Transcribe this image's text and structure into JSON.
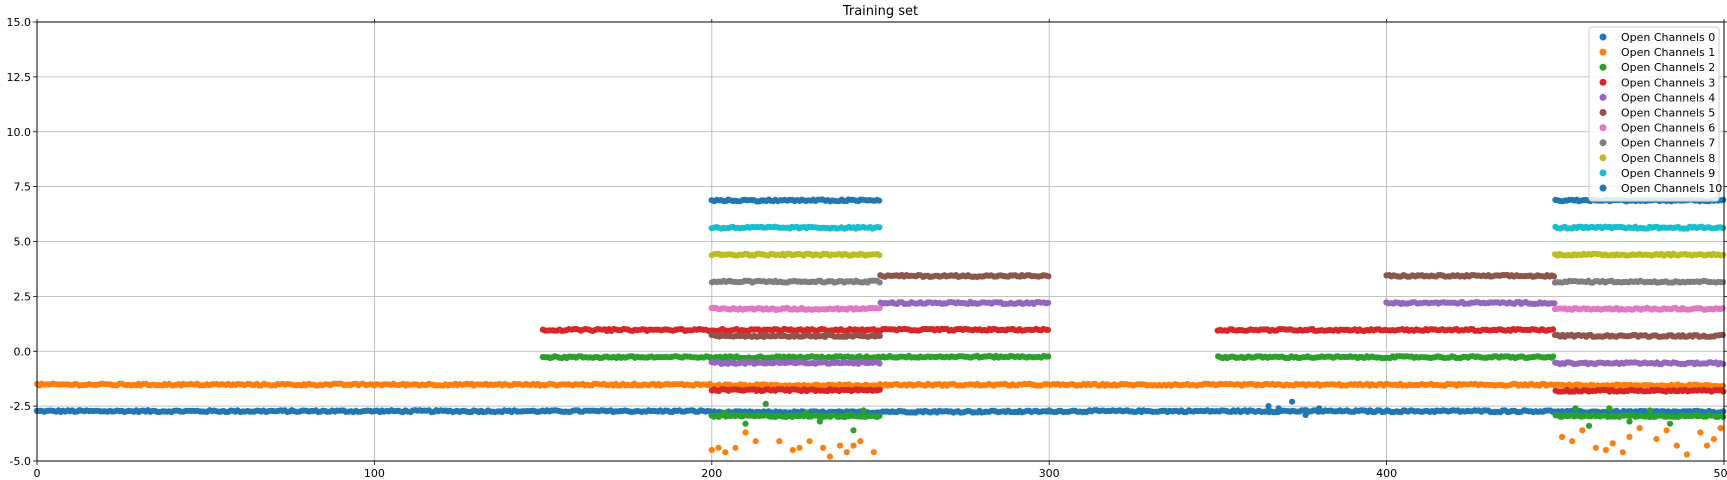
{
  "chart_data": {
    "type": "scatter",
    "title": "Training set",
    "xlabel": "",
    "ylabel": "",
    "xlim": [
      0,
      500
    ],
    "ylim": [
      -5.0,
      15.0
    ],
    "xticks": [
      0,
      100,
      200,
      300,
      400,
      500
    ],
    "yticks": [
      "-5.0",
      "-2.5",
      "0.0",
      "2.5",
      "5.0",
      "7.5",
      "10.0",
      "12.5",
      "15.0"
    ],
    "grid": true,
    "legend": "top-right",
    "series": [
      {
        "name": "Open Channels 0",
        "color": "#1f77b4",
        "segments": [
          [
            0,
            200,
            -2.73
          ],
          [
            200,
            250,
            -2.78
          ],
          [
            250,
            300,
            -2.75
          ],
          [
            300,
            450,
            -2.73
          ],
          [
            450,
            500,
            -2.76
          ]
        ]
      },
      {
        "name": "Open Channels 1",
        "color": "#ff7f0e",
        "segments": [
          [
            0,
            200,
            -1.52
          ],
          [
            200,
            250,
            -1.55
          ],
          [
            250,
            450,
            -1.53
          ],
          [
            450,
            500,
            -1.56
          ]
        ]
      },
      {
        "name": "Open Channels 2",
        "color": "#2ca02c",
        "segments": [
          [
            150,
            250,
            -0.27
          ],
          [
            250,
            300,
            -0.25
          ],
          [
            350,
            450,
            -0.27
          ],
          [
            200,
            250,
            -2.95
          ],
          [
            450,
            500,
            -2.95
          ]
        ]
      },
      {
        "name": "Open Channels 3",
        "color": "#d62728",
        "segments": [
          [
            150,
            250,
            0.97
          ],
          [
            250,
            300,
            0.98
          ],
          [
            350,
            450,
            0.97
          ],
          [
            200,
            250,
            -1.77
          ],
          [
            450,
            500,
            -1.8
          ]
        ]
      },
      {
        "name": "Open Channels 4",
        "color": "#9467bd",
        "segments": [
          [
            200,
            250,
            -0.53
          ],
          [
            250,
            300,
            2.2
          ],
          [
            400,
            450,
            2.2
          ],
          [
            450,
            500,
            -0.55
          ]
        ]
      },
      {
        "name": "Open Channels 5",
        "color": "#8c564b",
        "segments": [
          [
            200,
            250,
            0.7
          ],
          [
            250,
            300,
            3.43
          ],
          [
            400,
            450,
            3.43
          ],
          [
            450,
            500,
            0.7
          ]
        ]
      },
      {
        "name": "Open Channels 6",
        "color": "#e377c2",
        "segments": [
          [
            200,
            250,
            1.93
          ],
          [
            450,
            500,
            1.93
          ]
        ]
      },
      {
        "name": "Open Channels 7",
        "color": "#7f7f7f",
        "segments": [
          [
            200,
            250,
            3.17
          ],
          [
            450,
            500,
            3.17
          ]
        ]
      },
      {
        "name": "Open Channels 8",
        "color": "#bcbd22",
        "segments": [
          [
            200,
            250,
            4.4
          ],
          [
            450,
            500,
            4.4
          ]
        ]
      },
      {
        "name": "Open Channels 9",
        "color": "#17becf",
        "segments": [
          [
            200,
            250,
            5.63
          ],
          [
            450,
            500,
            5.63
          ]
        ]
      },
      {
        "name": "Open Channels 10",
        "color": "#1f77b4",
        "segments": [
          [
            200,
            250,
            6.87
          ],
          [
            450,
            500,
            6.87
          ]
        ]
      }
    ],
    "outliers": [
      {
        "series": 1,
        "points": [
          [
            200,
            -4.5
          ],
          [
            202,
            -4.4
          ],
          [
            204,
            -4.6
          ],
          [
            207,
            -4.4
          ],
          [
            210,
            -3.7
          ],
          [
            213,
            -4.1
          ],
          [
            220,
            -4.1
          ],
          [
            224,
            -4.5
          ],
          [
            226,
            -4.4
          ],
          [
            229,
            -4.1
          ],
          [
            233,
            -4.4
          ],
          [
            235,
            -4.8
          ],
          [
            238,
            -4.3
          ],
          [
            240,
            -4.6
          ],
          [
            242,
            -4.3
          ],
          [
            244,
            -4.1
          ],
          [
            248,
            -4.6
          ],
          [
            452,
            -3.9
          ],
          [
            455,
            -4.1
          ],
          [
            458,
            -3.6
          ],
          [
            462,
            -4.4
          ],
          [
            465,
            -4.5
          ],
          [
            467,
            -4.2
          ],
          [
            470,
            -4.6
          ],
          [
            472,
            -3.9
          ],
          [
            475,
            -3.5
          ],
          [
            480,
            -4.0
          ],
          [
            483,
            -3.6
          ],
          [
            486,
            -4.3
          ],
          [
            489,
            -4.7
          ],
          [
            493,
            -3.7
          ],
          [
            495,
            -4.3
          ],
          [
            497,
            -4.0
          ],
          [
            499,
            -3.5
          ]
        ]
      },
      {
        "series": 2,
        "points": [
          [
            204,
            -2.8
          ],
          [
            210,
            -3.3
          ],
          [
            216,
            -2.4
          ],
          [
            222,
            -3.0
          ],
          [
            228,
            -2.8
          ],
          [
            232,
            -3.2
          ],
          [
            240,
            -2.9
          ],
          [
            242,
            -3.6
          ],
          [
            245,
            -2.7
          ],
          [
            456,
            -2.6
          ],
          [
            460,
            -3.4
          ],
          [
            466,
            -2.6
          ],
          [
            472,
            -3.2
          ],
          [
            478,
            -2.7
          ],
          [
            484,
            -3.3
          ],
          [
            492,
            -2.9
          ]
        ]
      },
      {
        "series": 0,
        "points": [
          [
            365,
            -2.5
          ],
          [
            372,
            -2.3
          ],
          [
            368,
            -2.6
          ],
          [
            376,
            -2.9
          ],
          [
            380,
            -2.6
          ]
        ]
      }
    ]
  }
}
